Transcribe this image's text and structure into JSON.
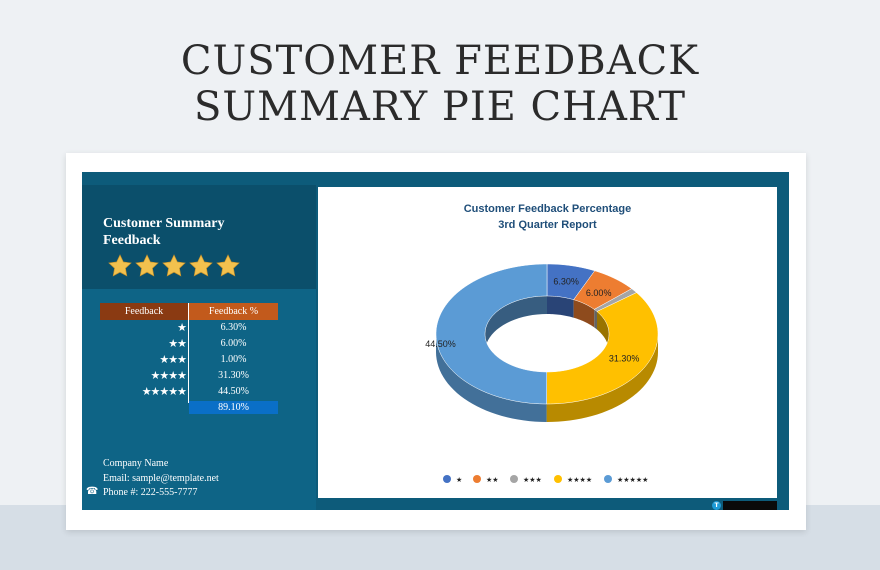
{
  "page": {
    "title_line1": "CUSTOMER FEEDBACK",
    "title_line2": "SUMMARY PIE CHART"
  },
  "summary": {
    "title_line1": "Customer Summary",
    "title_line2": "Feedback",
    "star_count": 5,
    "table_header_feedback": "Feedback",
    "table_header_percent": "Feedback %",
    "rows": [
      {
        "stars": "★",
        "pct": "6.30%"
      },
      {
        "stars": "★★",
        "pct": "6.00%"
      },
      {
        "stars": "★★★",
        "pct": "1.00%"
      },
      {
        "stars": "★★★★",
        "pct": "31.30%"
      },
      {
        "stars": "★★★★★",
        "pct": "44.50%"
      }
    ],
    "total": "89.10%"
  },
  "contact": {
    "company": "Company Name",
    "email": "Email: sample@template.net",
    "phone": "Phone #: 222-555-7777",
    "phone_icon": "☎"
  },
  "colors": {
    "star_gold": "#f2c14e",
    "slice_1": "#4472c4",
    "slice_2": "#ed7d31",
    "slice_3": "#a5a5a5",
    "slice_4": "#ffc000",
    "slice_5": "#5b9bd5"
  },
  "chart_data": {
    "type": "pie",
    "variant": "3d-doughnut",
    "title": "Customer Feedback Percentage",
    "subtitle": "3rd Quarter Report",
    "categories": [
      "★",
      "★★",
      "★★★",
      "★★★★",
      "★★★★★"
    ],
    "values": [
      6.3,
      6.0,
      1.0,
      31.3,
      44.5
    ],
    "data_labels": [
      "6.30%",
      "6.00%",
      "",
      "31.30%",
      "44.50%"
    ],
    "colors": [
      "#4472c4",
      "#ed7d31",
      "#a5a5a5",
      "#ffc000",
      "#5b9bd5"
    ],
    "legend_position": "bottom"
  }
}
